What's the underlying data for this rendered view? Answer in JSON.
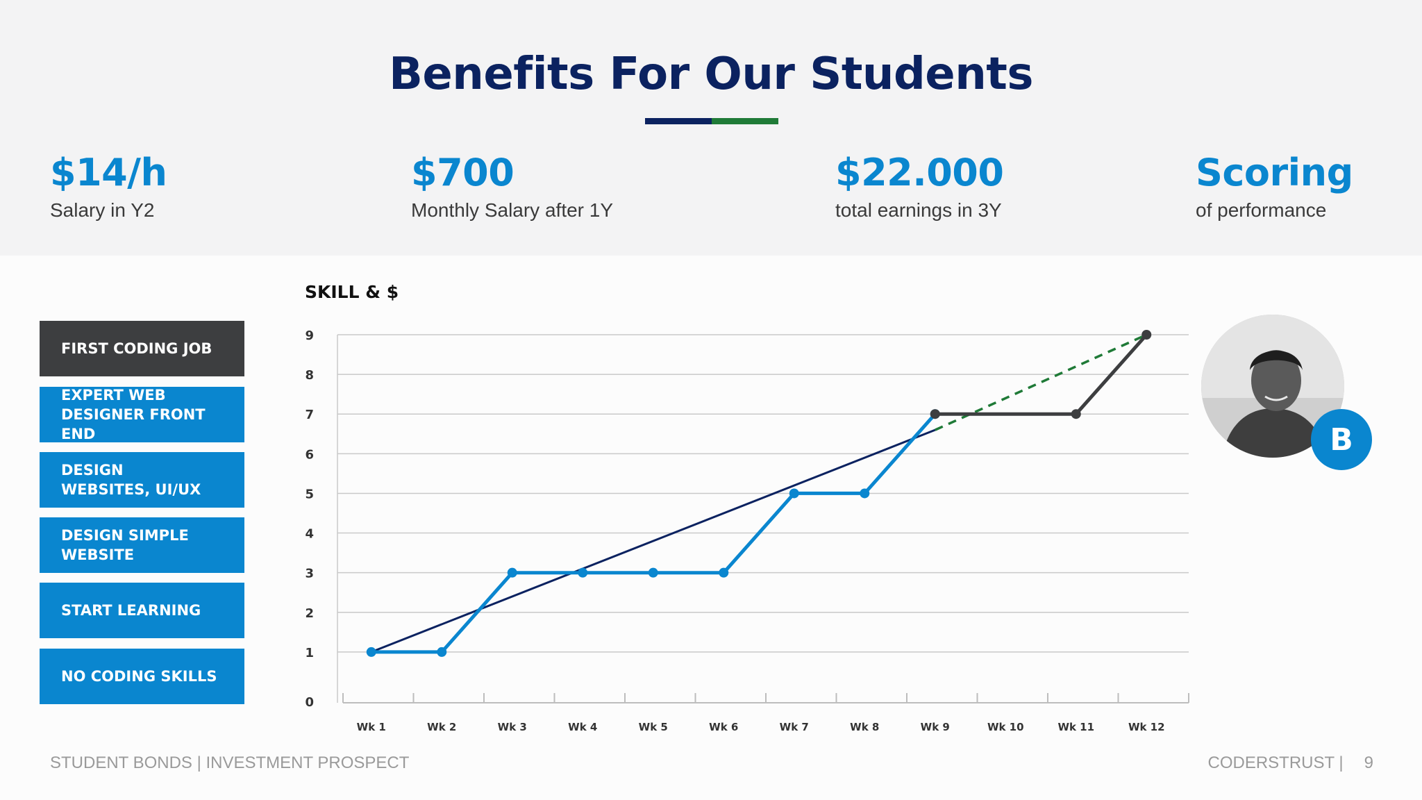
{
  "page": {
    "title": "Benefits For Our Students",
    "footer_left": "STUDENT BONDS | INVESTMENT PROSPECT",
    "footer_brand": "CODERSTRUST |",
    "page_number": "9"
  },
  "stats": [
    {
      "value": "$14/h",
      "label": "Salary in Y2"
    },
    {
      "value": "$700",
      "label": "Monthly Salary after 1Y"
    },
    {
      "value": "$22.000",
      "label": "total earnings in 3Y"
    },
    {
      "value": "Scoring",
      "label": "of performance"
    }
  ],
  "ladder": [
    "FIRST CODING JOB",
    "EXPERT WEB DESIGNER FRONT END",
    "DESIGN WEBSITES, UI/UX",
    "DESIGN SIMPLE WEBSITE",
    "START LEARNING",
    "NO CODING SKILLS"
  ],
  "profile": {
    "badge_letter": "B"
  },
  "colors": {
    "navy": "#0b2260",
    "blue": "#0a86cf",
    "green": "#1f7a37",
    "dark": "#3d3e40"
  },
  "chart_data": {
    "type": "line",
    "title": "SKILL & $",
    "categories": [
      "Wk 1",
      "Wk 2",
      "Wk 3",
      "Wk 4",
      "Wk 5",
      "Wk 6",
      "Wk 7",
      "Wk 8",
      "Wk 9",
      "Wk 10",
      "Wk 11",
      "Wk 12"
    ],
    "ylim": [
      0,
      9
    ],
    "yticks": [
      0,
      1,
      2,
      3,
      4,
      5,
      6,
      7,
      8,
      9
    ],
    "grid": true,
    "series": [
      {
        "style": "solid-markers",
        "color": "#0a86cf",
        "points": [
          [
            "Wk 1",
            1
          ],
          [
            "Wk 2",
            1
          ],
          [
            "Wk 3",
            3
          ],
          [
            "Wk 4",
            3
          ],
          [
            "Wk 5",
            3
          ],
          [
            "Wk 6",
            3
          ],
          [
            "Wk 7",
            5
          ],
          [
            "Wk 8",
            5
          ],
          [
            "Wk 9",
            7
          ]
        ]
      },
      {
        "style": "solid-markers",
        "color": "#3d3e40",
        "points": [
          [
            "Wk 9",
            7
          ],
          [
            "Wk 11",
            7
          ],
          [
            "Wk 12",
            9
          ]
        ]
      },
      {
        "style": "trend",
        "color": "#0b2260",
        "points": [
          [
            "Wk 1",
            1
          ],
          [
            "Wk 9",
            6.6
          ]
        ]
      },
      {
        "style": "dashed",
        "color": "#1f7a37",
        "points": [
          [
            "Wk 9",
            6.6
          ],
          [
            "Wk 12",
            9
          ]
        ]
      }
    ]
  }
}
